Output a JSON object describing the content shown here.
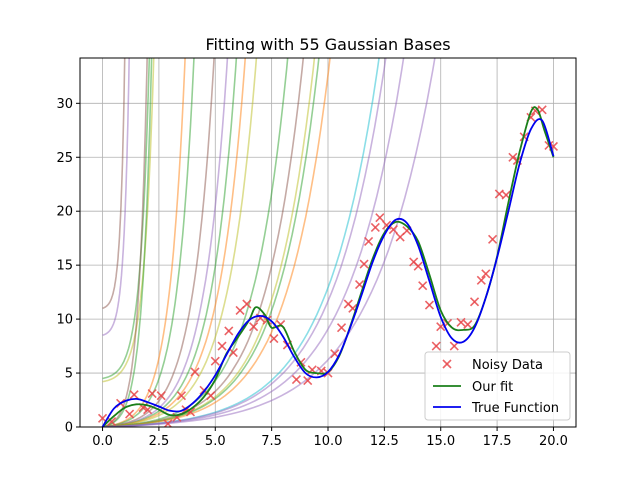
{
  "chart_data": {
    "type": "line",
    "title": "Fitting with 55 Gaussian Bases",
    "xlabel": "",
    "ylabel": "",
    "xlim": [
      -1.0,
      21.0
    ],
    "ylim": [
      0,
      34.2
    ],
    "xticks": [
      0.0,
      2.5,
      5.0,
      7.5,
      10.0,
      12.5,
      15.0,
      17.5,
      20.0
    ],
    "xtick_labels": [
      "0.0",
      "2.5",
      "5.0",
      "7.5",
      "10.0",
      "12.5",
      "15.0",
      "17.5",
      "20.0"
    ],
    "yticks": [
      0,
      5,
      10,
      15,
      20,
      25,
      30
    ],
    "ytick_labels": [
      "0",
      "5",
      "10",
      "15",
      "20",
      "25",
      "30"
    ],
    "grid": true,
    "legend_position": "bottom-right",
    "noisy_data": {
      "name": "Noisy Data",
      "color": "#e8474a",
      "marker": "x",
      "x": [
        0.0,
        0.4,
        0.8,
        1.2,
        1.4,
        1.8,
        2.0,
        2.2,
        2.6,
        2.9,
        3.3,
        3.5,
        3.7,
        3.9,
        4.1,
        4.5,
        4.8,
        5.0,
        5.3,
        5.6,
        5.8,
        6.1,
        6.4,
        6.7,
        7.0,
        7.3,
        7.6,
        7.9,
        8.2,
        8.6,
        8.8,
        9.1,
        9.3,
        9.7,
        10.0,
        10.3,
        10.6,
        10.9,
        11.1,
        11.4,
        11.6,
        11.8,
        12.1,
        12.3,
        12.6,
        12.9,
        13.2,
        13.5,
        13.8,
        14.0,
        14.2,
        14.5,
        14.8,
        15.0,
        15.3,
        15.6,
        15.9,
        16.2,
        16.5,
        16.8,
        17.0,
        17.3,
        17.6,
        17.9,
        18.2,
        18.4,
        18.7,
        19.0,
        19.2,
        19.5,
        19.8,
        20.0
      ],
      "y": [
        0.8,
        0.5,
        2.2,
        1.2,
        3.0,
        1.8,
        1.6,
        3.1,
        2.9,
        0.3,
        0.9,
        2.9,
        1.6,
        1.4,
        5.1,
        3.4,
        2.9,
        6.1,
        7.5,
        8.9,
        6.9,
        10.8,
        11.4,
        9.3,
        10.1,
        9.9,
        8.2,
        9.5,
        7.6,
        4.4,
        6.0,
        4.3,
        5.3,
        5.2,
        5.0,
        6.8,
        9.2,
        11.4,
        11.0,
        13.2,
        15.1,
        17.2,
        18.5,
        19.4,
        18.7,
        18.3,
        17.6,
        18.2,
        15.3,
        14.9,
        13.1,
        11.3,
        7.5,
        9.3,
        9.6,
        7.5,
        9.7,
        9.5,
        11.6,
        13.6,
        14.2,
        17.4,
        21.6,
        21.5,
        25.0,
        24.7,
        26.9,
        28.7,
        29.3,
        29.4,
        26.1,
        26.0
      ]
    },
    "our_fit": {
      "name": "Our fit",
      "color": "#1a7f1a",
      "x": [
        0.0,
        0.5,
        1.0,
        1.5,
        2.0,
        2.5,
        3.0,
        3.5,
        4.0,
        4.5,
        5.0,
        5.5,
        6.0,
        6.5,
        6.8,
        7.2,
        7.5,
        8.0,
        8.5,
        9.0,
        9.5,
        10.0,
        10.5,
        11.0,
        11.5,
        12.0,
        12.5,
        13.0,
        13.5,
        14.0,
        14.5,
        15.0,
        15.5,
        16.0,
        16.5,
        17.0,
        17.5,
        18.0,
        18.5,
        19.0,
        19.3,
        19.6,
        20.0
      ],
      "y": [
        0.0,
        1.0,
        1.8,
        2.1,
        2.0,
        1.6,
        1.1,
        1.2,
        1.8,
        2.8,
        4.4,
        6.8,
        8.3,
        9.9,
        11.1,
        10.4,
        9.2,
        9.3,
        7.0,
        5.3,
        5.0,
        5.1,
        6.6,
        9.4,
        12.6,
        15.7,
        18.0,
        19.0,
        18.6,
        17.2,
        14.1,
        10.8,
        9.2,
        9.0,
        9.4,
        12.0,
        15.8,
        20.8,
        25.5,
        29.2,
        29.4,
        27.5,
        25.0
      ]
    },
    "true_function": {
      "name": "True Function",
      "color": "#0000ee",
      "x": [
        0.0,
        0.5,
        1.0,
        1.5,
        2.0,
        2.5,
        3.0,
        3.5,
        4.0,
        4.5,
        5.0,
        5.5,
        6.0,
        6.5,
        7.0,
        7.5,
        8.0,
        8.5,
        9.0,
        9.5,
        10.0,
        10.5,
        11.0,
        11.5,
        12.0,
        12.5,
        13.0,
        13.5,
        14.0,
        14.5,
        15.0,
        15.5,
        16.0,
        16.5,
        17.0,
        17.5,
        18.0,
        18.5,
        19.0,
        19.5,
        20.0
      ],
      "y": [
        0.0,
        1.7,
        2.4,
        2.6,
        2.3,
        1.9,
        1.5,
        1.5,
        2.2,
        3.3,
        4.8,
        6.7,
        8.6,
        9.9,
        10.3,
        9.8,
        8.4,
        6.5,
        5.0,
        4.6,
        5.1,
        6.7,
        9.3,
        12.3,
        15.4,
        17.8,
        19.2,
        18.9,
        16.8,
        13.5,
        10.2,
        8.2,
        7.9,
        9.2,
        12.0,
        15.7,
        20.0,
        24.4,
        27.6,
        28.4,
        25.1
      ]
    },
    "basis_curves": {
      "count": 22,
      "alpha": 0.5,
      "curves": [
        {
          "color": "#8c564b",
          "y0": 11.0,
          "x_end": 1.0
        },
        {
          "color": "#9467bd",
          "y0": 8.5,
          "x_end": 1.2
        },
        {
          "color": "#2ca02c",
          "y0": 4.5,
          "x_end": 2.1
        },
        {
          "color": "#bcbd22",
          "y0": 4.2,
          "x_end": 2.3
        },
        {
          "color": "#8c564b",
          "y0": 0.0,
          "x_end": 2.0
        },
        {
          "color": "#2ca02c",
          "y0": 0.0,
          "x_end": 2.2
        },
        {
          "color": "#ff7f0e",
          "y0": 0.0,
          "x_end": 3.7
        },
        {
          "color": "#2ca02c",
          "y0": 0.0,
          "x_end": 4.1
        },
        {
          "color": "#8c564b",
          "y0": 0.0,
          "x_end": 5.0
        },
        {
          "color": "#9467bd",
          "y0": 0.0,
          "x_end": 5.6
        },
        {
          "color": "#2ca02c",
          "y0": 0.0,
          "x_end": 6.0
        },
        {
          "color": "#ff7f0e",
          "y0": 0.0,
          "x_end": 6.4
        },
        {
          "color": "#bcbd22",
          "y0": 0.0,
          "x_end": 6.9
        },
        {
          "color": "#2ca02c",
          "y0": 0.0,
          "x_end": 8.3
        },
        {
          "color": "#8c564b",
          "y0": 0.0,
          "x_end": 9.0
        },
        {
          "color": "#bcbd22",
          "y0": 0.0,
          "x_end": 9.5
        },
        {
          "color": "#2ca02c",
          "y0": 0.0,
          "x_end": 9.7
        },
        {
          "color": "#ff7f0e",
          "y0": 0.0,
          "x_end": 10.2
        },
        {
          "color": "#17becf",
          "y0": 0.0,
          "x_end": 12.4
        },
        {
          "color": "#9467bd",
          "y0": 0.0,
          "x_end": 12.7
        },
        {
          "color": "#9467bd",
          "y0": 0.0,
          "x_end": 13.5
        },
        {
          "color": "#9467bd",
          "y0": 0.0,
          "x_end": 14.9
        }
      ]
    }
  }
}
